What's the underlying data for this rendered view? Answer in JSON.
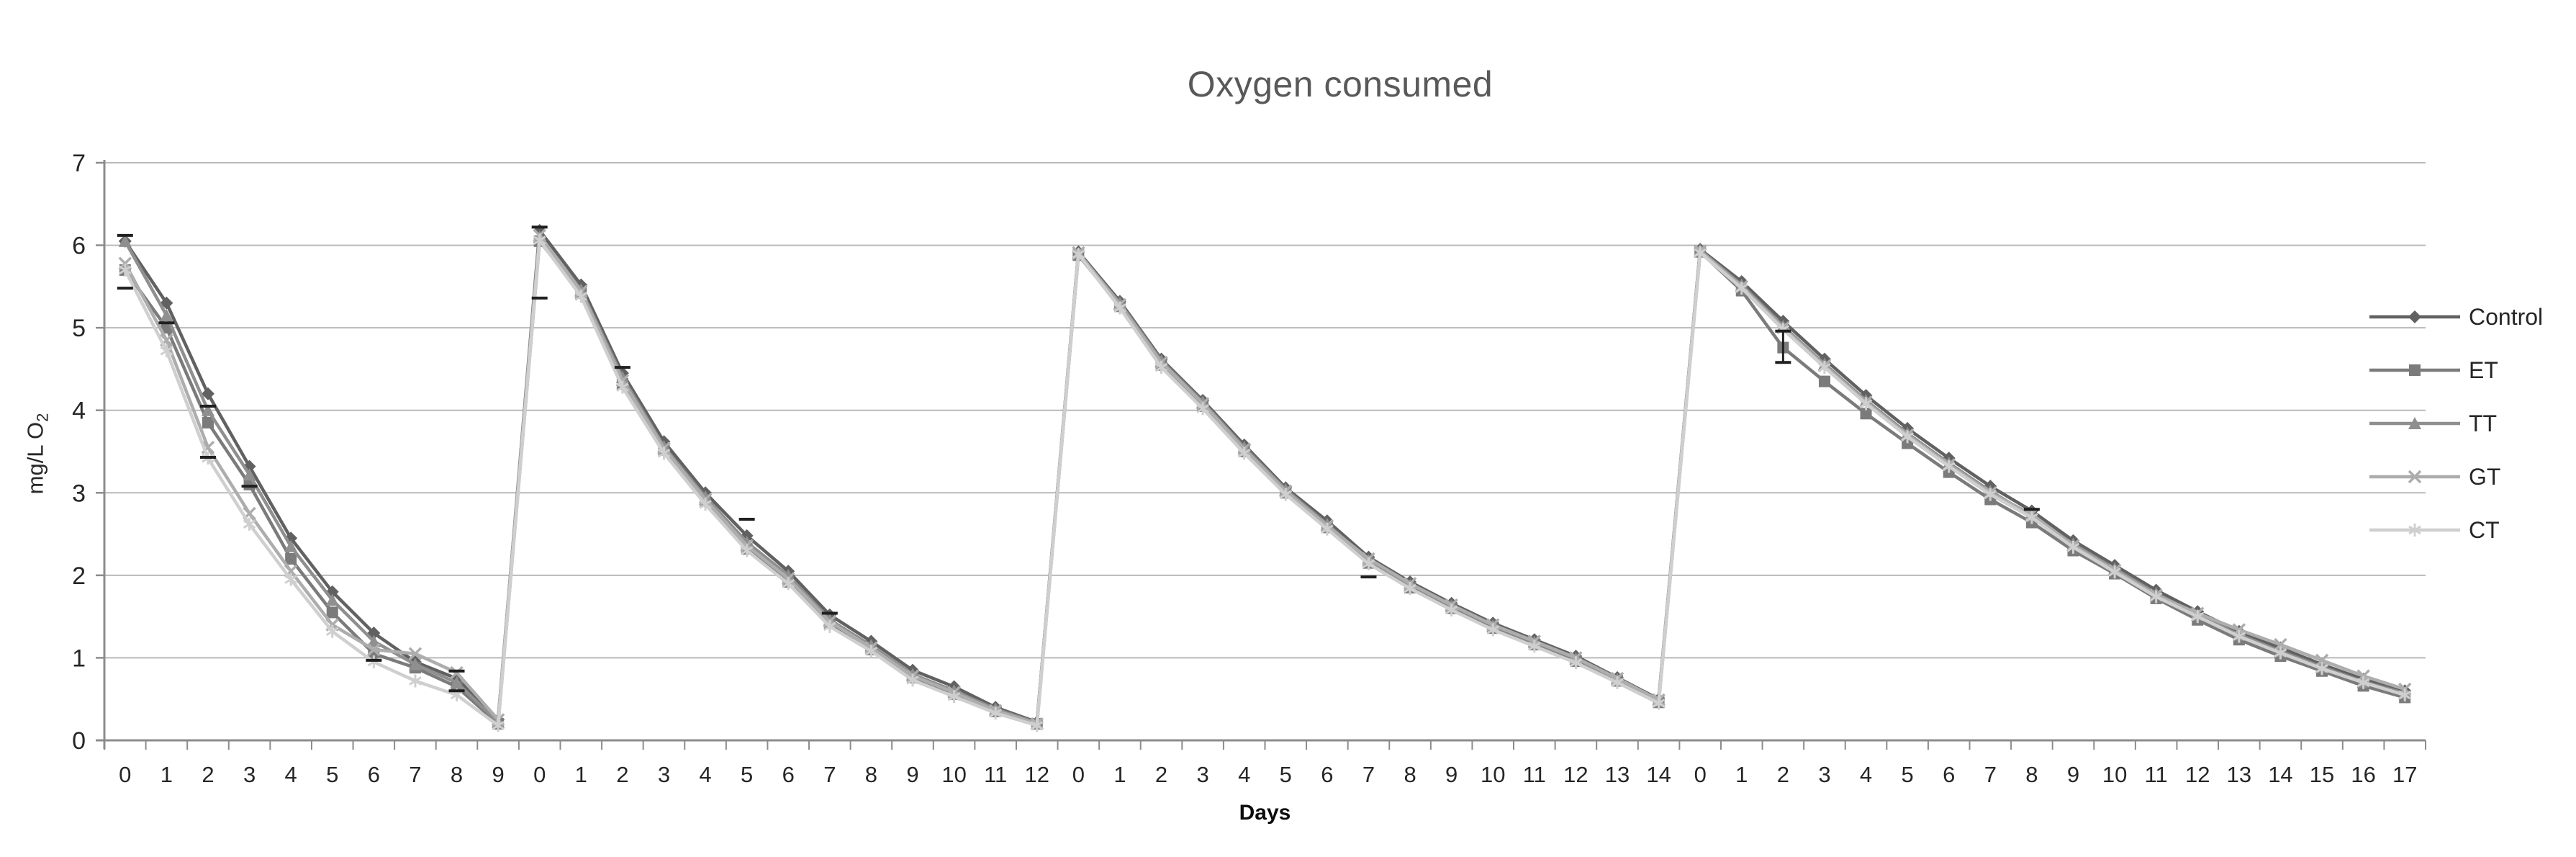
{
  "chart_data": {
    "type": "line",
    "title": "Oxygen consumed",
    "xlabel": "Days",
    "ylabel": "mg/L O2",
    "ylabel_main": "mg/L O",
    "ylabel_sub": "2",
    "ylim": [
      0,
      7
    ],
    "y_ticks": [
      0,
      1,
      2,
      3,
      4,
      5,
      6,
      7
    ],
    "grid": "horizontal",
    "legend_position": "right",
    "cycle_lengths_days": [
      10,
      13,
      15,
      18
    ],
    "x_labels": [
      "0",
      "1",
      "2",
      "3",
      "4",
      "5",
      "6",
      "7",
      "8",
      "9",
      "0",
      "1",
      "2",
      "3",
      "4",
      "5",
      "6",
      "7",
      "8",
      "9",
      "10",
      "11",
      "12",
      "0",
      "1",
      "2",
      "3",
      "4",
      "5",
      "6",
      "7",
      "8",
      "9",
      "10",
      "11",
      "12",
      "13",
      "14",
      "0",
      "1",
      "2",
      "3",
      "4",
      "5",
      "6",
      "7",
      "8",
      "9",
      "10",
      "11",
      "12",
      "13",
      "14",
      "15",
      "16",
      "17"
    ],
    "series": [
      {
        "name": "Control",
        "marker": "diamond",
        "color": "#616161",
        "values": [
          6.05,
          5.3,
          4.2,
          3.32,
          2.45,
          1.8,
          1.3,
          0.95,
          0.75,
          0.25,
          6.18,
          5.52,
          4.45,
          3.62,
          3.0,
          2.48,
          2.05,
          1.52,
          1.2,
          0.85,
          0.65,
          0.4,
          0.22,
          5.92,
          5.32,
          4.62,
          4.12,
          3.58,
          3.06,
          2.66,
          2.22,
          1.92,
          1.66,
          1.42,
          1.22,
          1.02,
          0.76,
          0.5,
          5.95,
          5.56,
          5.08,
          4.62,
          4.18,
          3.78,
          3.42,
          3.08,
          2.78,
          2.42,
          2.12,
          1.82,
          1.56,
          1.32,
          1.12,
          0.92,
          0.74,
          0.6
        ]
      },
      {
        "name": "ET",
        "marker": "square",
        "color": "#7b7b7b",
        "values": [
          5.7,
          5.0,
          3.85,
          3.1,
          2.2,
          1.55,
          1.05,
          0.88,
          0.65,
          0.2,
          6.05,
          5.42,
          4.32,
          3.52,
          2.9,
          2.32,
          1.92,
          1.42,
          1.1,
          0.76,
          0.56,
          0.35,
          0.2,
          5.88,
          5.26,
          4.55,
          4.05,
          3.5,
          3.0,
          2.58,
          2.15,
          1.85,
          1.6,
          1.36,
          1.16,
          0.96,
          0.72,
          0.46,
          5.92,
          5.45,
          4.76,
          4.35,
          3.96,
          3.6,
          3.25,
          2.92,
          2.64,
          2.3,
          2.02,
          1.72,
          1.46,
          1.22,
          1.02,
          0.84,
          0.66,
          0.52
        ]
      },
      {
        "name": "TT",
        "marker": "triangle",
        "color": "#8f8f8f",
        "values": [
          6.05,
          5.15,
          4.0,
          3.22,
          2.35,
          1.7,
          1.2,
          0.92,
          0.7,
          0.22,
          6.1,
          5.46,
          4.4,
          3.56,
          2.95,
          2.4,
          2.0,
          1.46,
          1.15,
          0.8,
          0.6,
          0.38,
          0.21,
          5.9,
          5.3,
          4.6,
          4.1,
          3.55,
          3.04,
          2.62,
          2.18,
          1.88,
          1.63,
          1.39,
          1.19,
          0.99,
          0.74,
          0.48,
          5.94,
          5.52,
          5.02,
          4.56,
          4.12,
          3.72,
          3.36,
          3.02,
          2.72,
          2.38,
          2.08,
          1.78,
          1.52,
          1.28,
          1.08,
          0.89,
          0.71,
          0.57
        ]
      },
      {
        "name": "GT",
        "marker": "x",
        "color": "#adadad",
        "values": [
          5.78,
          4.85,
          3.55,
          2.75,
          2.05,
          1.4,
          1.1,
          1.05,
          0.82,
          0.25,
          6.12,
          5.44,
          4.36,
          3.54,
          2.92,
          2.36,
          1.96,
          1.44,
          1.12,
          0.78,
          0.58,
          0.36,
          0.2,
          5.91,
          5.28,
          4.58,
          4.08,
          3.53,
          3.02,
          2.6,
          2.2,
          1.9,
          1.64,
          1.4,
          1.2,
          1.0,
          0.75,
          0.49,
          5.93,
          5.5,
          5.0,
          4.54,
          4.1,
          3.7,
          3.34,
          3.0,
          2.74,
          2.36,
          2.06,
          1.76,
          1.54,
          1.34,
          1.16,
          0.97,
          0.78,
          0.62
        ]
      },
      {
        "name": "CT",
        "marker": "asterisk",
        "color": "#cfcfcf",
        "values": [
          5.7,
          4.72,
          3.42,
          2.62,
          1.95,
          1.32,
          0.95,
          0.72,
          0.55,
          0.18,
          6.06,
          5.38,
          4.28,
          3.48,
          2.86,
          2.3,
          1.9,
          1.38,
          1.08,
          0.73,
          0.53,
          0.33,
          0.18,
          5.89,
          5.24,
          4.52,
          4.02,
          3.48,
          2.98,
          2.56,
          2.14,
          1.84,
          1.58,
          1.34,
          1.14,
          0.94,
          0.7,
          0.45,
          5.91,
          5.48,
          4.98,
          4.52,
          4.08,
          3.68,
          3.32,
          2.98,
          2.7,
          2.34,
          2.04,
          1.74,
          1.5,
          1.26,
          1.06,
          0.87,
          0.7,
          0.55
        ]
      }
    ],
    "error_bars": [
      {
        "i": 0,
        "caps": [
          6.12,
          5.48
        ]
      },
      {
        "i": 1,
        "caps": [
          5.06
        ]
      },
      {
        "i": 2,
        "caps": [
          4.05,
          3.43
        ]
      },
      {
        "i": 3,
        "caps": [
          3.08
        ]
      },
      {
        "i": 6,
        "caps": [
          0.97
        ]
      },
      {
        "i": 8,
        "caps": [
          0.84,
          0.6
        ]
      },
      {
        "i": 10,
        "caps": [
          6.22,
          5.36
        ]
      },
      {
        "i": 12,
        "caps": [
          4.52
        ]
      },
      {
        "i": 15,
        "caps": [
          2.68
        ]
      },
      {
        "i": 17,
        "caps": [
          1.54
        ]
      },
      {
        "i": 30,
        "caps": [
          1.98
        ]
      },
      {
        "i": 40,
        "caps": [
          4.96,
          4.58
        ],
        "bar": true
      },
      {
        "i": 46,
        "caps": [
          2.8
        ]
      }
    ],
    "colors": {
      "title_text": "#595959",
      "axis_line": "#8c8c8c",
      "gridline": "#b9b9b9",
      "tick_text": "#262626",
      "error_bar": "#1f1f1f"
    }
  }
}
